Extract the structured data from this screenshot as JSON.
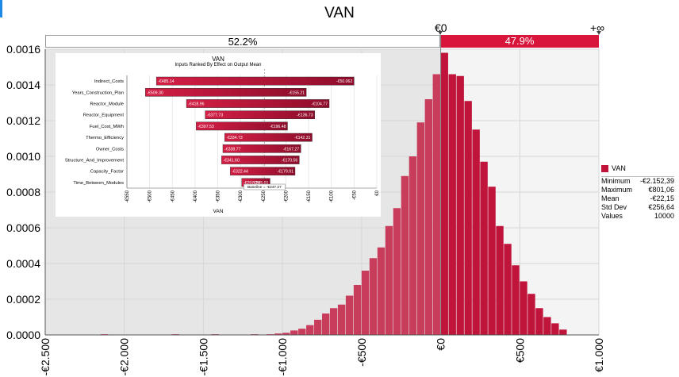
{
  "chart_data": [
    {
      "type": "bar",
      "title": "VAN",
      "xlim": [
        -2500,
        1000
      ],
      "ylim": [
        0,
        0.0016
      ],
      "x_ticks": [
        "-€2.500",
        "-€2.000",
        "-€1.500",
        "-€1.000",
        "-€500",
        "€0",
        "€500",
        "€1.000"
      ],
      "y_ticks": [
        "0.0000",
        "0.0002",
        "0.0004",
        "0.0006",
        "0.0008",
        "0.0010",
        "0.0012",
        "0.0014",
        "0.0016"
      ],
      "grid": true,
      "delimiters": {
        "left_label": "€0",
        "right_label": "+∞",
        "left_pct": "52.2%",
        "right_pct": "47.9%"
      },
      "bin_width": 50,
      "bins": [
        {
          "x": -2150,
          "y": 4e-06
        },
        {
          "x": -1700,
          "y": 4e-06
        },
        {
          "x": -1450,
          "y": 4e-06
        },
        {
          "x": -1200,
          "y": 4e-06
        },
        {
          "x": -1100,
          "y": 4e-06
        },
        {
          "x": -1050,
          "y": 8e-06
        },
        {
          "x": -1000,
          "y": 1.2e-05
        },
        {
          "x": -950,
          "y": 2.5e-05
        },
        {
          "x": -900,
          "y": 3.5e-05
        },
        {
          "x": -850,
          "y": 5.5e-05
        },
        {
          "x": -800,
          "y": 8.5e-05
        },
        {
          "x": -750,
          "y": 0.00012
        },
        {
          "x": -700,
          "y": 0.00015
        },
        {
          "x": -650,
          "y": 0.00017
        },
        {
          "x": -600,
          "y": 0.00022
        },
        {
          "x": -550,
          "y": 0.00028
        },
        {
          "x": -500,
          "y": 0.00036
        },
        {
          "x": -450,
          "y": 0.00043
        },
        {
          "x": -400,
          "y": 0.00049
        },
        {
          "x": -350,
          "y": 0.00061
        },
        {
          "x": -300,
          "y": 0.00071
        },
        {
          "x": -250,
          "y": 0.00089
        },
        {
          "x": -200,
          "y": 0.001
        },
        {
          "x": -150,
          "y": 0.00119
        },
        {
          "x": -100,
          "y": 0.00132
        },
        {
          "x": -50,
          "y": 0.00146
        },
        {
          "x": 0,
          "y": 0.00158
        },
        {
          "x": 50,
          "y": 0.00146
        },
        {
          "x": 100,
          "y": 0.00145
        },
        {
          "x": 150,
          "y": 0.00131
        },
        {
          "x": 200,
          "y": 0.00115
        },
        {
          "x": 250,
          "y": 0.00097
        },
        {
          "x": 300,
          "y": 0.00083
        },
        {
          "x": 350,
          "y": 0.00061
        },
        {
          "x": 400,
          "y": 0.00051
        },
        {
          "x": 450,
          "y": 0.00039
        },
        {
          "x": 500,
          "y": 0.0003
        },
        {
          "x": 550,
          "y": 0.00023
        },
        {
          "x": 600,
          "y": 0.00015
        },
        {
          "x": 650,
          "y": 0.0001
        },
        {
          "x": 700,
          "y": 6.5e-05
        },
        {
          "x": 750,
          "y": 3e-05
        }
      ],
      "legend": {
        "label": "VAN",
        "placement": "right"
      },
      "stats": [
        {
          "label": "Minimum",
          "value": "-€2.152,39"
        },
        {
          "label": "Maximum",
          "value": "€801,06"
        },
        {
          "label": "Mean",
          "value": "-€22,15"
        },
        {
          "label": "Std Dev",
          "value": "€256,64"
        },
        {
          "label": "Values",
          "value": "10000"
        }
      ],
      "colors": {
        "left_bars": "#c93d5c",
        "right_bars": "#c0143b",
        "right_band": "#d8163c",
        "shade": "#e6e6e6"
      }
    },
    {
      "type": "bar",
      "subtype": "tornado",
      "title": "VAN",
      "subtitle": "Inputs Ranked By Effect on Output Mean",
      "xlabel": "VAN",
      "xlim": [
        -550,
        0
      ],
      "x_ticks": [
        "-€550",
        "-€500",
        "-€450",
        "-€400",
        "-€350",
        "-€300",
        "-€250",
        "-€200",
        "-€150",
        "-€100",
        "-€50",
        "€0"
      ],
      "baseline": -247.27,
      "baseline_label": "Baseline = -€247.27",
      "rows": [
        {
          "name": "Indirect_Costs",
          "low": -485.14,
          "high": -50.062,
          "low_label": "-€485.14",
          "high_label": "-€50.062"
        },
        {
          "name": "Years_Construction_Plan",
          "low": -509.3,
          "high": -155.21,
          "low_label": "-€509.30",
          "high_label": "-€155.21"
        },
        {
          "name": "Reactor_Module",
          "low": -418.96,
          "high": -104.77,
          "low_label": "-€418.96",
          "high_label": "-€104.77"
        },
        {
          "name": "Reactor_Equipment",
          "low": -377.73,
          "high": -136.73,
          "low_label": "-€377.73",
          "high_label": "-€136.73"
        },
        {
          "name": "Fuel_Cost_MWh",
          "low": -397.53,
          "high": -196.48,
          "low_label": "-€397.53",
          "high_label": "-€196.48"
        },
        {
          "name": "Thermo_Efficiency",
          "low": -334.73,
          "high": -142.31,
          "low_label": "-€334.73",
          "high_label": "-€142.31"
        },
        {
          "name": "Owner_Costs",
          "low": -338.77,
          "high": -167.27,
          "low_label": "-€338.77",
          "high_label": "-€167.27"
        },
        {
          "name": "Structure_And_Improvement",
          "low": -341.6,
          "high": -170.56,
          "low_label": "-€341.60",
          "high_label": "-€170.56"
        },
        {
          "name": "Capacity_Factor",
          "low": -322.44,
          "high": -179.91,
          "low_label": "-€322.44",
          "high_label": "-€179.91"
        },
        {
          "name": "Time_Between_Modules",
          "low": -297.24,
          "high": -235.01,
          "low_label": "-€297.24",
          "high_label": "-€235.01"
        }
      ]
    }
  ]
}
